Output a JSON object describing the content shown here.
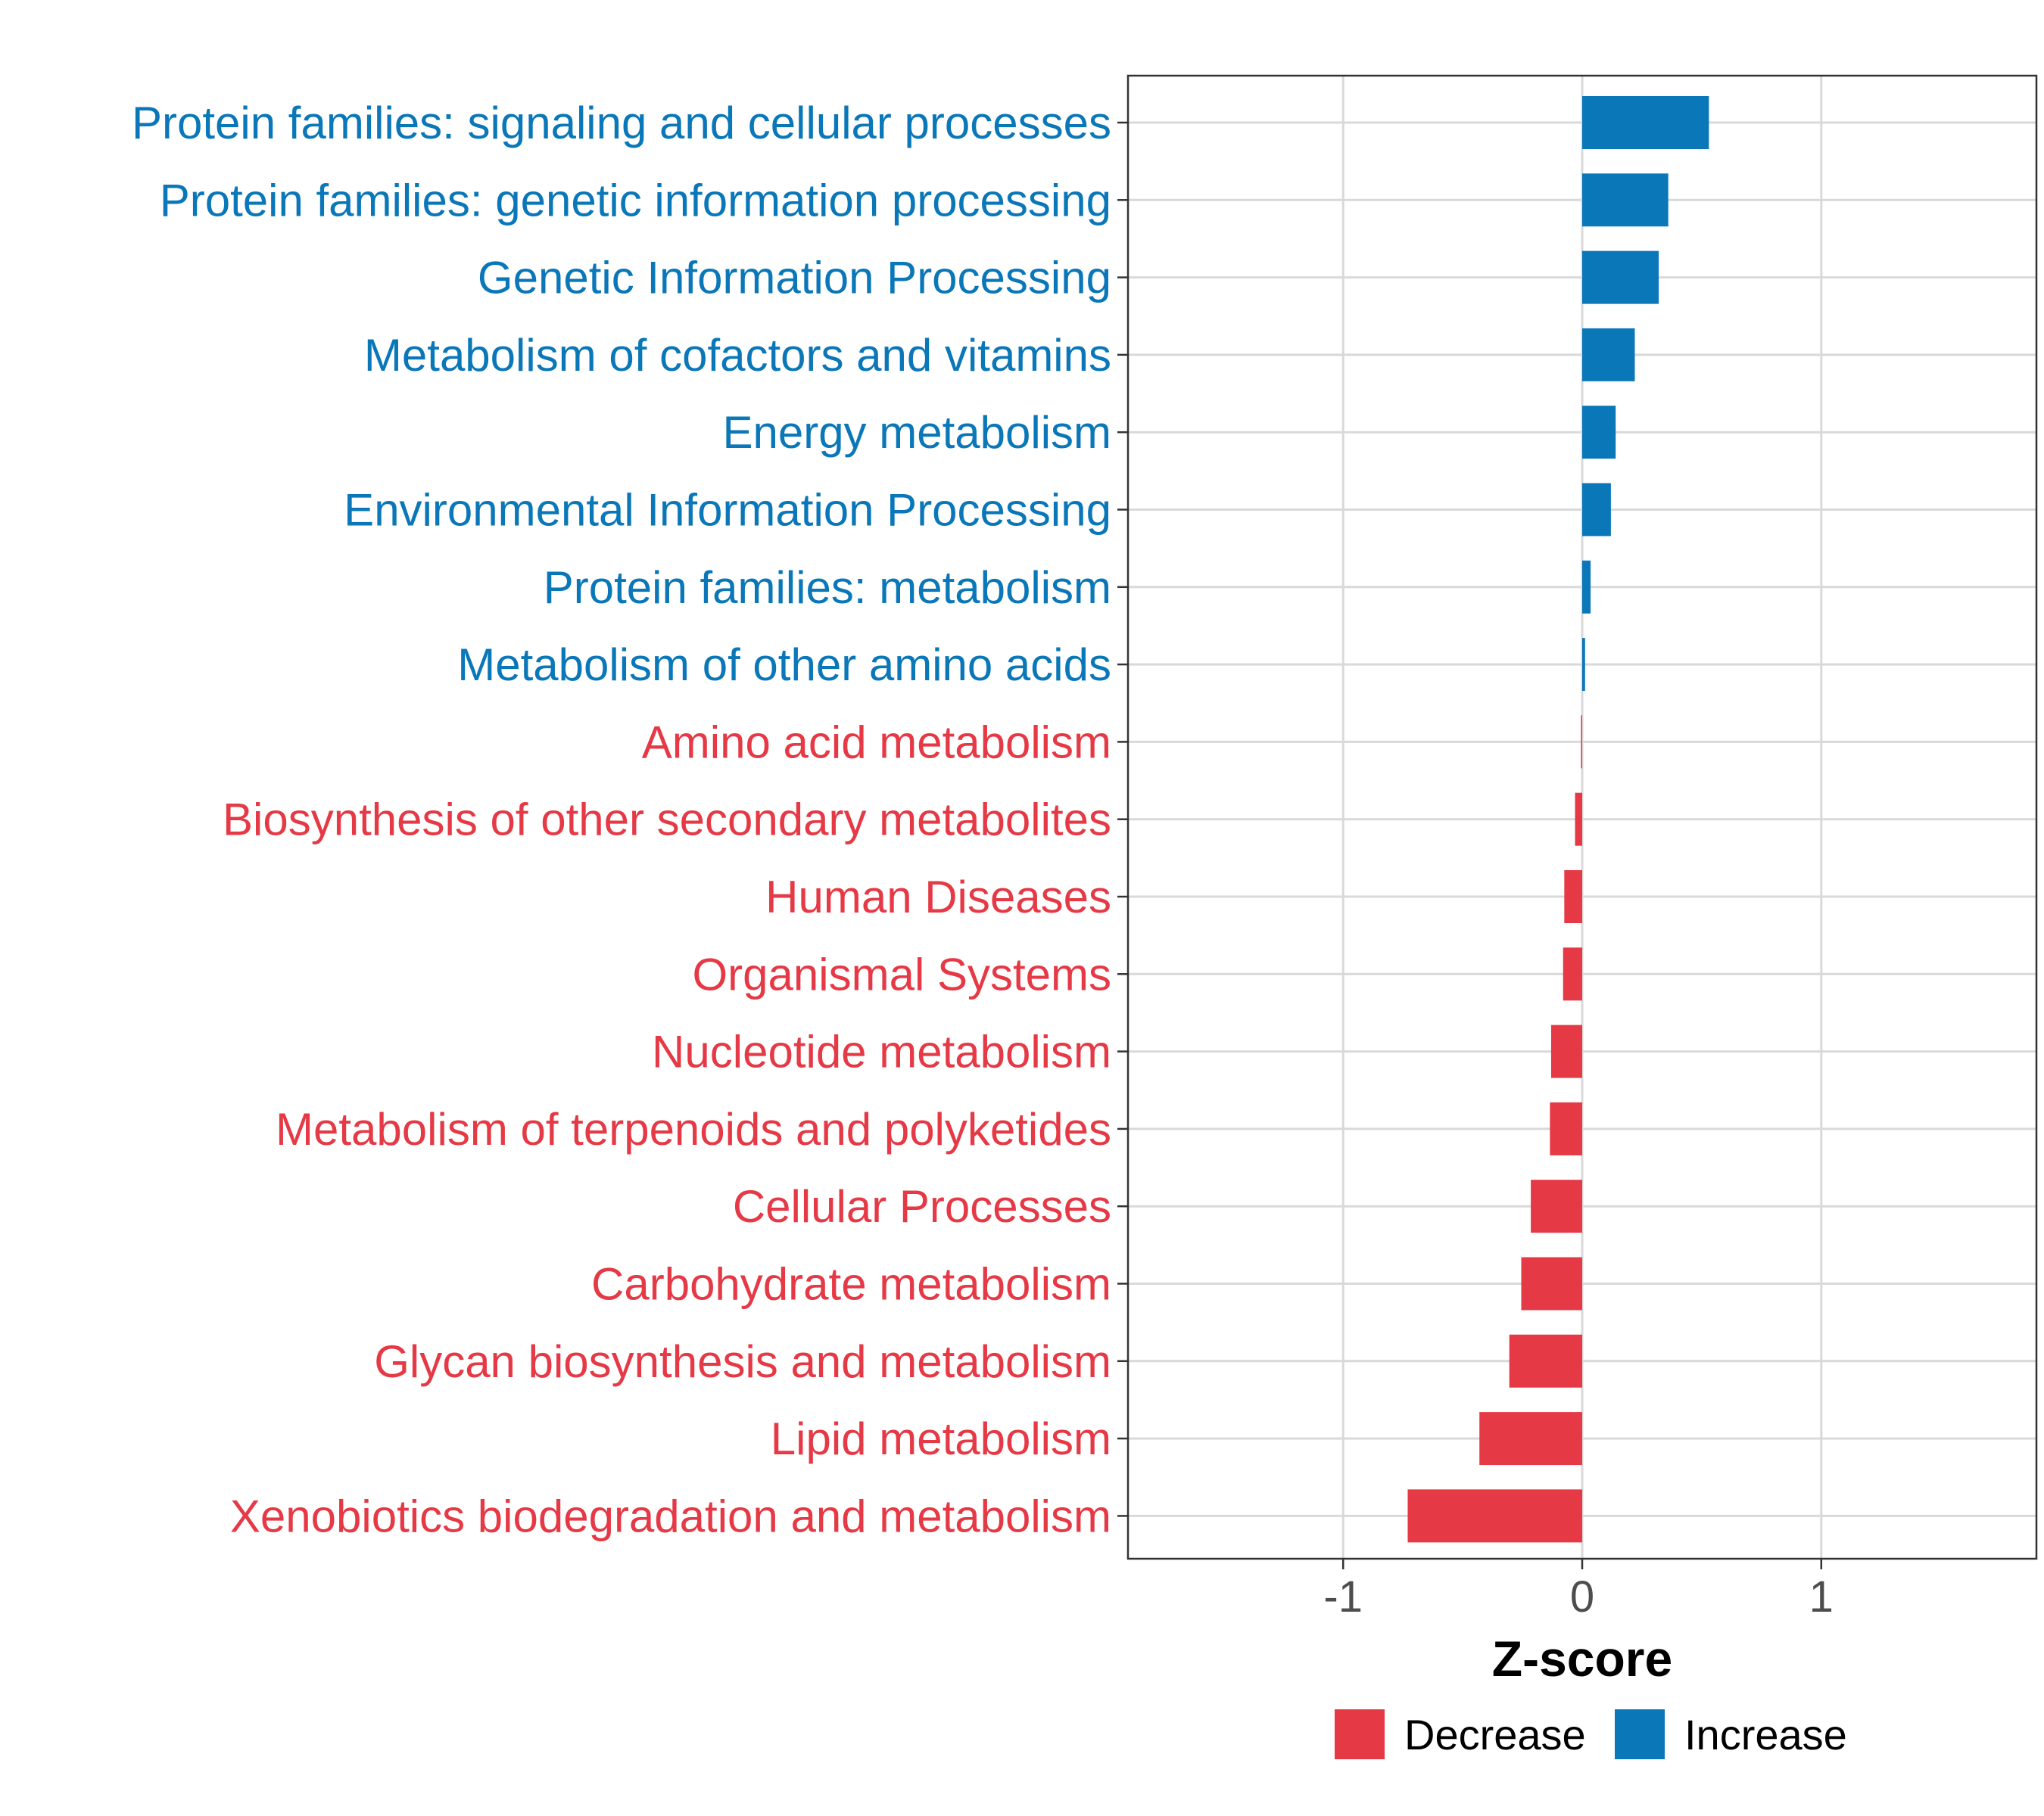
{
  "chart_data": {
    "type": "bar",
    "orientation": "horizontal",
    "xlabel": "Z-score",
    "ylabel": "",
    "xlim": [
      -1.9,
      1.9
    ],
    "x_ticks": [
      -1,
      0,
      1
    ],
    "x_tick_labels": [
      "-1",
      "0",
      "1"
    ],
    "grid": true,
    "legend_position": "bottom",
    "legend": [
      {
        "name": "Decrease",
        "color": "#E63946"
      },
      {
        "name": "Increase",
        "color": "#0A77B8"
      }
    ],
    "categories": [
      "Protein families: signaling and cellular processes",
      "Protein families: genetic information processing",
      "Genetic Information Processing",
      "Metabolism of cofactors and vitamins",
      "Energy metabolism",
      "Environmental Information Processing",
      "Protein families: metabolism",
      "Metabolism of other amino acids",
      "Amino acid metabolism",
      "Biosynthesis of other secondary metabolites",
      "Human Diseases",
      "Organismal Systems",
      "Nucleotide metabolism",
      "Metabolism of terpenoids and polyketides",
      "Cellular Processes",
      "Carbohydrate metabolism",
      "Glycan biosynthesis and metabolism",
      "Lipid metabolism",
      "Xenobiotics biodegradation and metabolism"
    ],
    "values": [
      0.53,
      0.36,
      0.32,
      0.22,
      0.14,
      0.12,
      0.035,
      0.012,
      -0.005,
      -0.03,
      -0.075,
      -0.08,
      -0.13,
      -0.135,
      -0.215,
      -0.255,
      -0.305,
      -0.43,
      -0.73
    ],
    "groups": [
      "Increase",
      "Increase",
      "Increase",
      "Increase",
      "Increase",
      "Increase",
      "Increase",
      "Increase",
      "Decrease",
      "Decrease",
      "Decrease",
      "Decrease",
      "Decrease",
      "Decrease",
      "Decrease",
      "Decrease",
      "Decrease",
      "Decrease",
      "Decrease"
    ]
  }
}
